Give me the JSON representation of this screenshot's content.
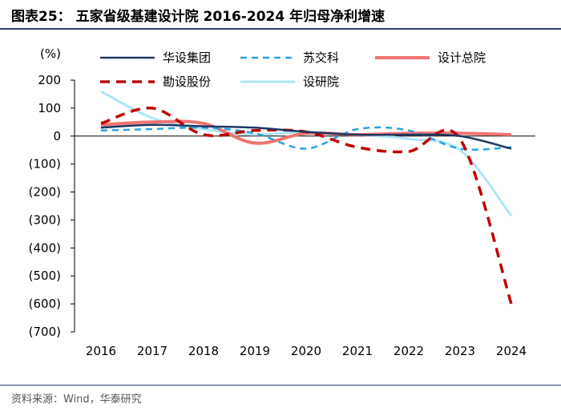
{
  "header": {
    "title": "图表25：  五家省级基建设计院 2016-2024 年归母净利增速"
  },
  "footer": {
    "source": "资料来源：Wind，华泰研究"
  },
  "chart_data": {
    "type": "line",
    "title": "五家省级基建设计院 2016-2024 年归母净利增速",
    "unit_label": "(%)",
    "xlabel": "",
    "ylabel": "(%)",
    "categories": [
      "2016",
      "2017",
      "2018",
      "2019",
      "2020",
      "2021",
      "2022",
      "2023",
      "2024"
    ],
    "ylim": [
      -700,
      200
    ],
    "yticks": [
      200,
      100,
      0,
      -100,
      -200,
      -300,
      -400,
      -500,
      -600,
      -700
    ],
    "ytick_labels": [
      "200",
      "100",
      "0",
      "(100)",
      "(200)",
      "(300)",
      "(400)",
      "(500)",
      "(600)",
      "(700)"
    ],
    "grid": false,
    "legend_position": "top",
    "series": [
      {
        "name": "华设集团",
        "color": "#1f3864",
        "dash": "solid",
        "values": [
          30,
          40,
          35,
          30,
          15,
          5,
          5,
          0,
          -45
        ]
      },
      {
        "name": "苏交科",
        "color": "#2aa3e3",
        "dash": "dashed",
        "values": [
          20,
          25,
          30,
          10,
          -45,
          25,
          20,
          -45,
          -40
        ]
      },
      {
        "name": "设计总院",
        "color": "#f07470",
        "dash": "solid",
        "values": [
          40,
          50,
          45,
          -25,
          10,
          5,
          10,
          10,
          5
        ]
      },
      {
        "name": "勘设股份",
        "color": "#c00000",
        "dash": "dashed",
        "values": [
          45,
          100,
          5,
          20,
          15,
          -40,
          -55,
          -10,
          -600
        ]
      },
      {
        "name": "设研院",
        "color": "#aee4f5",
        "dash": "solid",
        "values": [
          160,
          65,
          25,
          5,
          15,
          5,
          -10,
          -50,
          -285
        ]
      }
    ]
  }
}
